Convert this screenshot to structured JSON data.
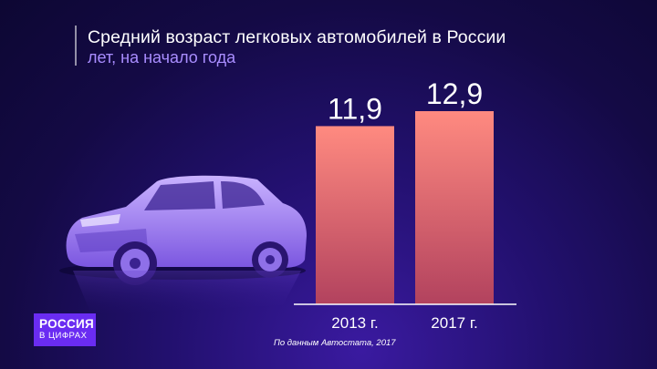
{
  "header": {
    "title": "Средний возраст легковых автомобилей в России",
    "subtitle": "лет, на начало года"
  },
  "badge": {
    "line1": "РОССИЯ",
    "line2": "В ЦИФРАХ"
  },
  "source": "По данным Автостата, 2017",
  "colors": {
    "bar_top": "#ff8a80",
    "bar_bottom": "#b2425e",
    "title": "#ffffff",
    "subtitle": "#a98dff",
    "badge": "#6a2cf2"
  },
  "illustration": {
    "icon": "car-icon"
  },
  "chart_data": {
    "type": "bar",
    "title": "Средний возраст легковых автомобилей в России",
    "subtitle": "лет, на начало года",
    "categories": [
      "2013 г.",
      "2017 г."
    ],
    "values": [
      11.9,
      12.9
    ],
    "value_labels": [
      "11,9",
      "12,9"
    ],
    "xlabel": "",
    "ylabel": "",
    "ylim": [
      0,
      12.9
    ],
    "grid": false,
    "legend": "none"
  }
}
